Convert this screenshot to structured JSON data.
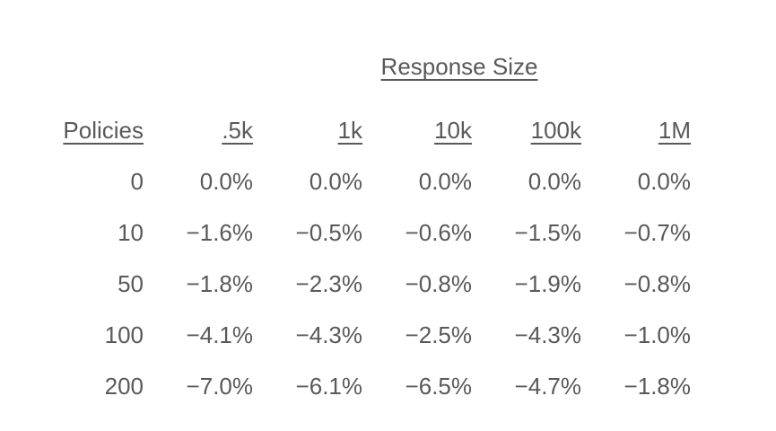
{
  "title": "Response Size",
  "colors": {
    "text": "#595959",
    "background": "#ffffff"
  },
  "table": {
    "row_header_label": "Policies",
    "col_headers": [
      ".5k",
      "1k",
      "10k",
      "100k",
      "1M"
    ],
    "rows": [
      {
        "policy": "0",
        "values": [
          "0.0%",
          "0.0%",
          "0.0%",
          "0.0%",
          "0.0%"
        ]
      },
      {
        "policy": "10",
        "values": [
          "−1.6%",
          "−0.5%",
          "−0.6%",
          "−1.5%",
          "−0.7%"
        ]
      },
      {
        "policy": "50",
        "values": [
          "−1.8%",
          "−2.3%",
          "−0.8%",
          "−1.9%",
          "−0.8%"
        ]
      },
      {
        "policy": "100",
        "values": [
          "−4.1%",
          "−4.3%",
          "−2.5%",
          "−4.3%",
          "−1.0%"
        ]
      },
      {
        "policy": "200",
        "values": [
          "−7.0%",
          "−6.1%",
          "−6.5%",
          "−4.7%",
          "−1.8%"
        ]
      }
    ]
  },
  "chart_data": {
    "type": "table",
    "title": "Response Size",
    "row_axis_label": "Policies",
    "columns": [
      ".5k",
      "1k",
      "10k",
      "100k",
      "1M"
    ],
    "row_categories": [
      0,
      10,
      50,
      100,
      200
    ],
    "values_percent": [
      [
        0.0,
        0.0,
        0.0,
        0.0,
        0.0
      ],
      [
        -1.6,
        -0.5,
        -0.6,
        -1.5,
        -0.7
      ],
      [
        -1.8,
        -2.3,
        -0.8,
        -1.9,
        -0.8
      ],
      [
        -4.1,
        -4.3,
        -2.5,
        -4.3,
        -1.0
      ],
      [
        -7.0,
        -6.1,
        -6.5,
        -4.7,
        -1.8
      ]
    ]
  }
}
